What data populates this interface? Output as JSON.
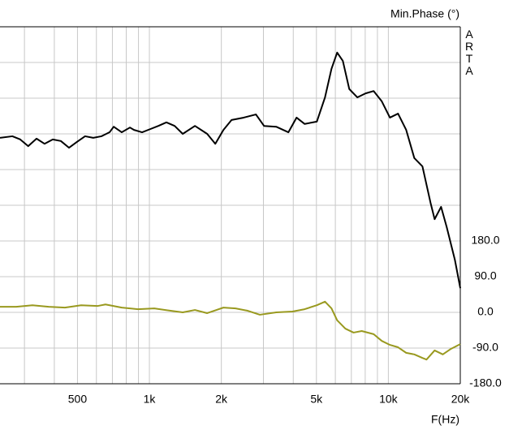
{
  "chart_data": {
    "type": "line",
    "title": "Min.Phase (°)",
    "watermark": "ARTA",
    "xlabel": "F(Hz)",
    "xscale": "log",
    "xlim": [
      237,
      20000
    ],
    "xticks": [
      500,
      {
        "value": 1000,
        "label": "1k"
      },
      {
        "value": 2000,
        "label": "2k"
      },
      {
        "value": 5000,
        "label": "5k"
      },
      {
        "value": 10000,
        "label": "10k"
      },
      {
        "value": 20000,
        "label": "20k"
      }
    ],
    "xminorticks": [
      300,
      400,
      600,
      700,
      800,
      900,
      3000,
      4000,
      6000,
      7000,
      8000,
      9000
    ],
    "ylim": [
      -180,
      720
    ],
    "yticks": [
      {
        "value": -180,
        "label": "-180.0"
      },
      {
        "value": -90,
        "label": "-90.0"
      },
      {
        "value": 0,
        "label": "0.0"
      },
      {
        "value": 90,
        "label": "90.0"
      },
      {
        "value": 180,
        "label": "180.0"
      }
    ],
    "yminorticks": [
      270,
      360,
      450,
      540,
      630
    ],
    "grid": true,
    "series": [
      {
        "color": "#000000",
        "x": [
          237,
          267,
          288,
          311,
          337,
          364,
          394,
          426,
          461,
          498,
          538,
          582,
          630,
          681,
          709,
          766,
          829,
          862,
          932,
          1008,
          1090,
          1178,
          1275,
          1379,
          1551,
          1745,
          1887,
          2041,
          2207,
          2481,
          2791,
          3018,
          3394,
          3817,
          4128,
          4465,
          5021,
          5431,
          5781,
          6106,
          6449,
          6862,
          7420,
          8025,
          8679,
          9386,
          10151,
          10978,
          11873,
          12840,
          13887,
          15018,
          15618,
          16622,
          17545,
          18975,
          20000
        ],
        "values": [
          440,
          444,
          436,
          419,
          438,
          425,
          436,
          432,
          415,
          430,
          444,
          440,
          444,
          454,
          468,
          454,
          466,
          460,
          454,
          462,
          470,
          479,
          470,
          450,
          470,
          450,
          425,
          460,
          485,
          491,
          499,
          470,
          468,
          454,
          491,
          475,
          481,
          542,
          614,
          655,
          634,
          563,
          542,
          552,
          558,
          532,
          491,
          501,
          460,
          389,
          368,
          276,
          235,
          266,
          215,
          133,
          61
        ]
      },
      {
        "color": "#99991f",
        "x": [
          237,
          277,
          324,
          379,
          443,
          518,
          606,
          655,
          766,
          896,
          1048,
          1226,
          1379,
          1551,
          1745,
          2041,
          2294,
          2579,
          2899,
          3394,
          3969,
          4465,
          5021,
          5431,
          5781,
          6106,
          6608,
          7150,
          7737,
          8679,
          9386,
          10151,
          10978,
          11873,
          12840,
          13887,
          14442,
          15618,
          16901,
          18284,
          20000
        ],
        "values": [
          14,
          14,
          18,
          14,
          12,
          18,
          16,
          20,
          12,
          8,
          10,
          4,
          0,
          6,
          -2,
          12,
          10,
          4,
          -6,
          0,
          2,
          8,
          18,
          27,
          10,
          -20,
          -41,
          -51,
          -47,
          -55,
          -72,
          -82,
          -88,
          -102,
          -106,
          -115,
          -119,
          -96,
          -106,
          -92,
          -80
        ]
      }
    ]
  }
}
